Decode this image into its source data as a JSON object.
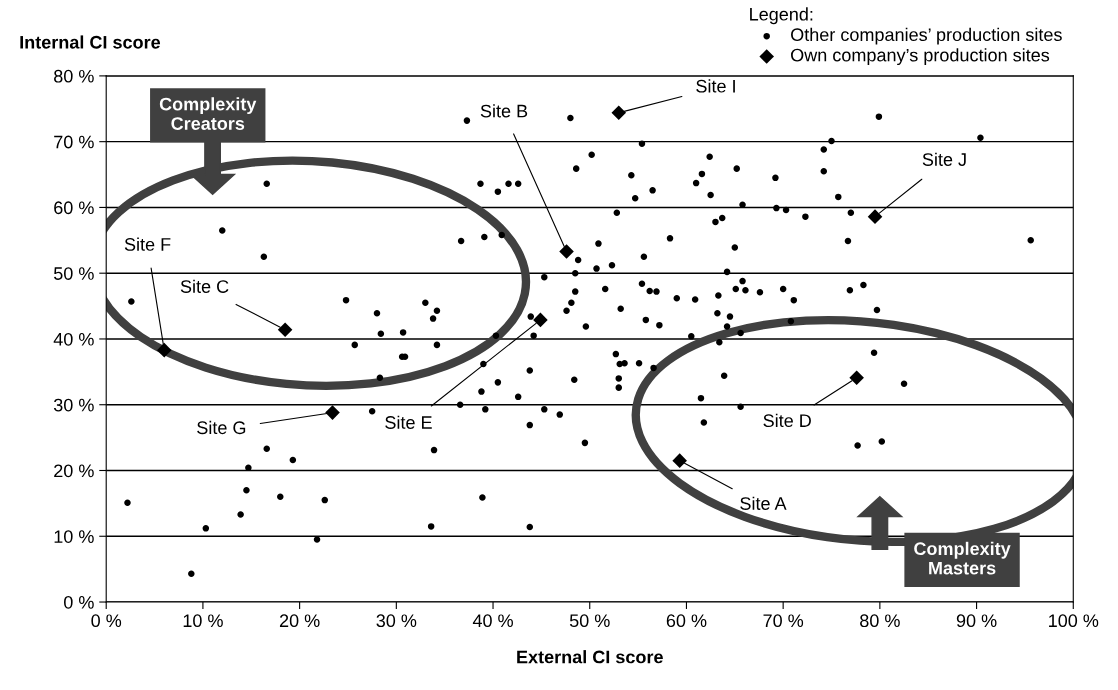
{
  "chart_data": {
    "type": "scatter",
    "xlabel": "External CI score",
    "ylabel": "Internal CI score",
    "legend_title": "Legend:",
    "legend": "top right",
    "grid": "y",
    "xlim": [
      0,
      100
    ],
    "ylim": [
      0,
      80
    ],
    "xticks": [
      {
        "value": 0,
        "label": "0 %"
      },
      {
        "value": 10,
        "label": "10 %"
      },
      {
        "value": 20,
        "label": "20 %"
      },
      {
        "value": 30,
        "label": "30 %"
      },
      {
        "value": 40,
        "label": "40 %"
      },
      {
        "value": 50,
        "label": "50 %"
      },
      {
        "value": 60,
        "label": "60 %"
      },
      {
        "value": 70,
        "label": "70 %"
      },
      {
        "value": 80,
        "label": "80 %"
      },
      {
        "value": 90,
        "label": "90 %"
      },
      {
        "value": 100,
        "label": "100 %"
      }
    ],
    "yticks": [
      {
        "value": 0,
        "label": "0 %"
      },
      {
        "value": 10,
        "label": "10 %"
      },
      {
        "value": 20,
        "label": "20 %"
      },
      {
        "value": 30,
        "label": "30 %"
      },
      {
        "value": 40,
        "label": "40 %"
      },
      {
        "value": 50,
        "label": "50 %"
      },
      {
        "value": 60,
        "label": "60 %"
      },
      {
        "value": 70,
        "label": "70 %"
      },
      {
        "value": 80,
        "label": "80 %"
      }
    ],
    "series": [
      {
        "name": "Other companies’ production sites",
        "color": "#000000",
        "marker": "circle",
        "x": [
          16.6,
          12.0,
          16.3,
          2.6,
          24.8,
          28.0,
          28.4,
          30.7,
          37.3,
          48.0,
          55.4,
          50.2,
          48.6,
          38.7,
          40.5,
          41.6,
          42.6,
          54.3,
          54.7,
          56.5,
          62.4,
          61.6,
          61.0,
          62.5,
          65.2,
          65.8,
          52.8,
          63.0,
          63.7,
          58.3,
          65.0,
          50.9,
          55.6,
          36.7,
          39.1,
          40.9,
          48.8,
          50.7,
          52.3,
          48.5,
          45.3,
          64.2,
          65.8,
          65.1,
          66.1,
          55.4,
          56.2,
          56.9,
          59.0,
          60.9,
          63.3,
          51.6,
          48.5,
          48.1,
          47.6,
          53.2,
          63.2,
          64.5,
          64.2,
          65.6,
          55.8,
          57.2,
          49.6,
          60.5,
          43.9,
          44.2,
          33.0,
          34.2,
          33.8,
          40.3,
          79.9,
          90.4,
          75.0,
          74.2,
          74.2,
          69.2,
          75.7,
          69.3,
          70.3,
          72.3,
          77.0,
          76.7,
          95.6,
          67.6,
          70.0,
          71.1,
          76.9,
          78.3,
          79.7,
          70.8,
          25.7,
          30.6,
          30.9,
          28.3,
          27.5,
          16.6,
          19.3,
          14.7,
          14.5,
          18.0,
          22.6,
          2.2,
          13.9,
          10.3,
          21.8,
          8.8,
          34.2,
          63.4,
          39.0,
          43.8,
          40.5,
          38.8,
          39.2,
          42.6,
          36.6,
          45.3,
          46.9,
          43.8,
          48.4,
          52.7,
          53.1,
          53.6,
          55.1,
          56.6,
          53.0,
          53.0,
          49.5,
          33.9,
          38.9,
          33.6,
          43.8,
          63.9,
          61.5,
          65.6,
          61.8,
          79.4,
          82.5,
          77.7,
          80.2
        ],
        "values": [
          63.6,
          56.5,
          52.5,
          45.7,
          45.9,
          43.9,
          40.8,
          41.0,
          73.2,
          73.6,
          69.7,
          68.0,
          65.9,
          63.6,
          62.4,
          63.6,
          63.6,
          64.9,
          61.4,
          62.6,
          67.7,
          65.1,
          63.7,
          61.9,
          65.9,
          60.4,
          59.2,
          57.8,
          58.4,
          55.3,
          53.9,
          54.5,
          52.5,
          54.9,
          55.5,
          55.8,
          52.0,
          50.7,
          51.2,
          50.0,
          49.4,
          50.2,
          48.8,
          47.6,
          47.4,
          48.4,
          47.3,
          47.2,
          46.2,
          46.0,
          46.6,
          47.6,
          47.2,
          45.5,
          44.3,
          44.6,
          43.9,
          43.4,
          41.9,
          40.9,
          42.9,
          42.1,
          41.9,
          40.4,
          43.4,
          40.5,
          45.5,
          44.3,
          43.1,
          40.5,
          73.8,
          70.6,
          70.1,
          68.8,
          65.5,
          64.5,
          61.6,
          59.9,
          59.6,
          58.6,
          59.2,
          54.9,
          55.0,
          47.1,
          47.6,
          45.9,
          47.4,
          48.2,
          44.4,
          42.7,
          39.1,
          37.3,
          37.3,
          34.1,
          29.0,
          23.3,
          21.6,
          20.4,
          17.0,
          16.0,
          15.5,
          15.1,
          13.3,
          11.2,
          9.5,
          4.3,
          39.1,
          39.5,
          36.2,
          35.2,
          33.4,
          32.0,
          29.3,
          31.2,
          30.0,
          29.3,
          28.5,
          26.9,
          33.8,
          37.7,
          36.2,
          36.3,
          36.3,
          35.6,
          34.0,
          32.6,
          24.2,
          23.1,
          15.9,
          11.5,
          11.4,
          34.4,
          31.0,
          29.7,
          27.3,
          37.9,
          33.2,
          23.8,
          24.4
        ]
      },
      {
        "name": "Own company’s production sites",
        "color": "#000000",
        "marker": "diamond",
        "x": [
          53.0,
          47.6,
          79.5,
          6.0,
          18.5,
          23.4,
          44.9,
          77.6,
          59.3
        ],
        "values": [
          74.4,
          53.3,
          58.6,
          38.3,
          41.4,
          28.8,
          42.9,
          34.1,
          21.5
        ]
      }
    ],
    "annotations": [
      {
        "text": "Site I",
        "x": 53.0,
        "y": 74.4
      },
      {
        "text": "Site B",
        "x": 47.6,
        "y": 53.3
      },
      {
        "text": "Site J",
        "x": 79.5,
        "y": 58.6
      },
      {
        "text": "Site F",
        "x": 6.0,
        "y": 38.3
      },
      {
        "text": "Site C",
        "x": 18.5,
        "y": 41.4
      },
      {
        "text": "Site G",
        "x": 23.4,
        "y": 28.8
      },
      {
        "text": "Site E",
        "x": 44.9,
        "y": 42.9
      },
      {
        "text": "Site D",
        "x": 77.6,
        "y": 34.1
      },
      {
        "text": "Site A",
        "x": 59.3,
        "y": 21.5
      },
      "Complexity\nCreators",
      "Complexity\nMasters"
    ]
  }
}
